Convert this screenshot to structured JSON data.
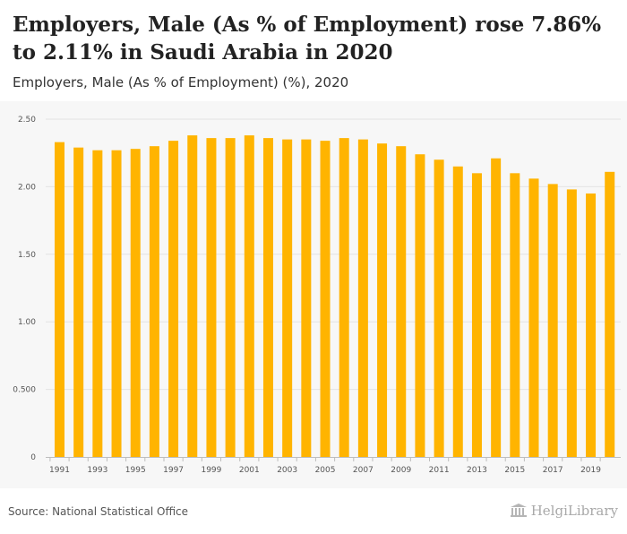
{
  "header": {
    "title": "Employers, Male (As % of Employment) rose 7.86% to 2.11% in Saudi Arabia in 2020",
    "subtitle": "Employers, Male (As % of Employment) (%), 2020"
  },
  "footer": {
    "source": "Source: National Statistical Office",
    "logo_text": "HelgiLibrary"
  },
  "colors": {
    "bar": "#FFB400",
    "background": "#f7f7f7",
    "grid": "#e3e3e3"
  },
  "chart_data": {
    "type": "bar",
    "title": "Employers, Male (As % of Employment) (%), 2020",
    "xlabel": "",
    "ylabel": "",
    "ylim": [
      0,
      2.5
    ],
    "yticks": [
      0,
      0.5,
      1.0,
      1.5,
      2.0,
      2.5
    ],
    "ytick_labels": [
      "0",
      "0.500",
      "1.00",
      "1.50",
      "2.00",
      "2.50"
    ],
    "categories": [
      1991,
      1992,
      1993,
      1994,
      1995,
      1996,
      1997,
      1998,
      1999,
      2000,
      2001,
      2002,
      2003,
      2004,
      2005,
      2006,
      2007,
      2008,
      2009,
      2010,
      2011,
      2012,
      2013,
      2014,
      2015,
      2016,
      2017,
      2018,
      2019,
      2020
    ],
    "xtick_labels": [
      "1991",
      "1993",
      "1995",
      "1997",
      "1999",
      "2001",
      "2003",
      "2005",
      "2007",
      "2009",
      "2011",
      "2013",
      "2015",
      "2017",
      "2019"
    ],
    "values": [
      2.33,
      2.29,
      2.27,
      2.27,
      2.28,
      2.3,
      2.34,
      2.38,
      2.36,
      2.36,
      2.38,
      2.36,
      2.35,
      2.35,
      2.34,
      2.36,
      2.35,
      2.32,
      2.3,
      2.24,
      2.2,
      2.15,
      2.1,
      2.21,
      2.1,
      2.06,
      2.02,
      1.98,
      1.95,
      2.11
    ],
    "grid": true,
    "legend": "none"
  }
}
